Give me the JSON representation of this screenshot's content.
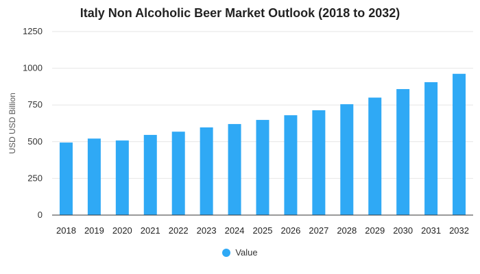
{
  "chart_data": {
    "type": "bar",
    "title": "Italy Non Alcoholic Beer Market Outlook (2018 to 2032)",
    "xlabel": "",
    "ylabel": "USD USD Billion",
    "categories": [
      "2018",
      "2019",
      "2020",
      "2021",
      "2022",
      "2023",
      "2024",
      "2025",
      "2026",
      "2027",
      "2028",
      "2029",
      "2030",
      "2031",
      "2032"
    ],
    "series": [
      {
        "name": "Value",
        "values": [
          494,
          521,
          508,
          546,
          568,
          597,
          620,
          648,
          680,
          714,
          755,
          800,
          858,
          905,
          962
        ]
      }
    ],
    "yticks": [
      "0",
      "250",
      "500",
      "750",
      "1000",
      "1250"
    ],
    "ylim": [
      0,
      1250
    ],
    "grid": true,
    "legend_position": "bottom-center",
    "bar_color": "#2fa9f5",
    "grid_color": "#e6e6e6",
    "axis_color": "#333333"
  }
}
